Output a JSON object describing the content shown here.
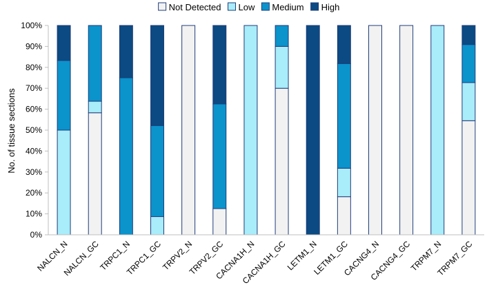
{
  "chart_data": {
    "type": "bar",
    "stacked": true,
    "ylabel": "No. of tissue sections",
    "ylim": [
      0,
      100
    ],
    "y_ticks": [
      "0%",
      "10%",
      "20%",
      "30%",
      "40%",
      "50%",
      "60%",
      "70%",
      "80%",
      "90%",
      "100%"
    ],
    "legend_position": "top",
    "categories": [
      "NALCN_N",
      "NALCN_GC",
      "TRPC1_N",
      "TRPC1_GC",
      "TRPV2_N",
      "TRPV2_GC",
      "CACNA1H_N",
      "CACNA1H_GC",
      "LETM1_N",
      "LETM1_GC",
      "CACNG4_N",
      "CACNG4_GC",
      "TRPM7_N",
      "TRPM7_GC"
    ],
    "series": [
      {
        "name": "Not Detected",
        "color": "#f2f2f2",
        "values": [
          0,
          58.3,
          0,
          0,
          100,
          12.5,
          0,
          70,
          0,
          18.2,
          100,
          100,
          0,
          54.5
        ]
      },
      {
        "name": "Low",
        "color": "#a9ecfa",
        "values": [
          50,
          5.5,
          0,
          8.7,
          0,
          0,
          100,
          20,
          0,
          13.6,
          0,
          0,
          100,
          18.2
        ]
      },
      {
        "name": "Medium",
        "color": "#0b93cc",
        "values": [
          33.3,
          36.2,
          75,
          43.5,
          0,
          50,
          0,
          10,
          0,
          50,
          0,
          0,
          0,
          18.2
        ]
      },
      {
        "name": "High",
        "color": "#0b4a82",
        "values": [
          16.7,
          0,
          25,
          47.8,
          0,
          37.5,
          0,
          0,
          100,
          18.2,
          0,
          0,
          0,
          9.1
        ]
      }
    ]
  }
}
